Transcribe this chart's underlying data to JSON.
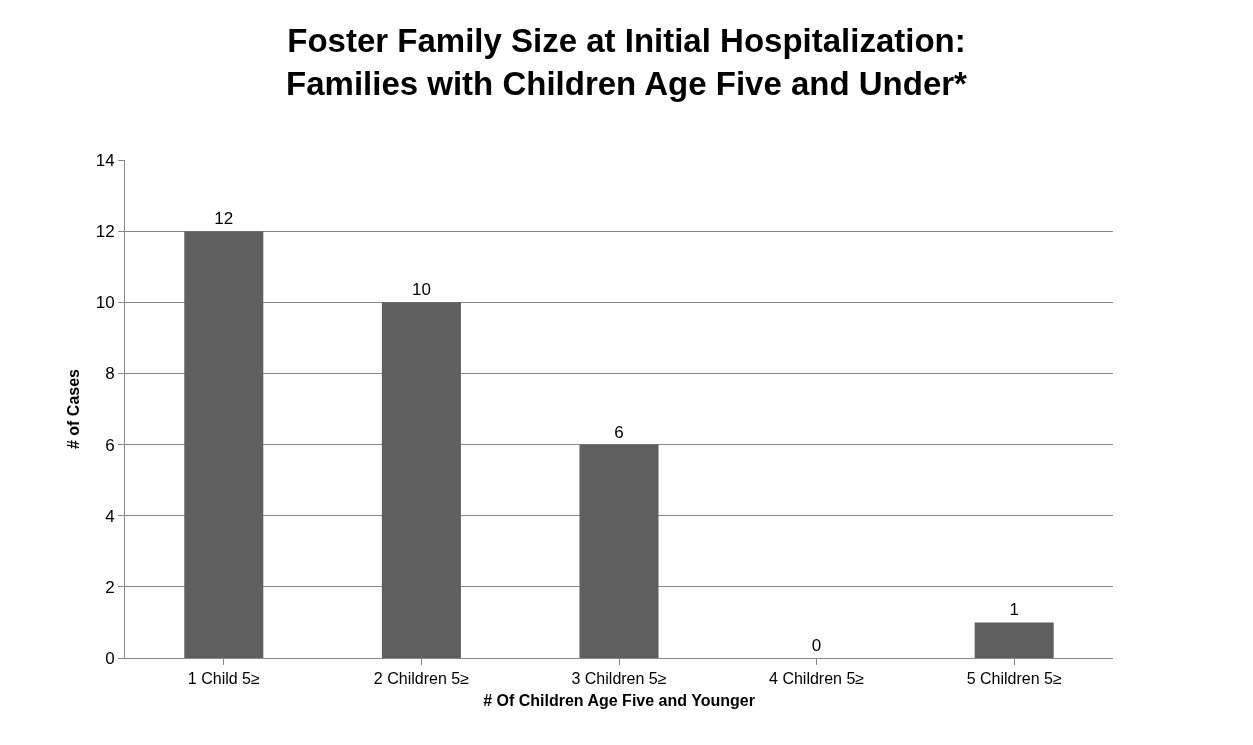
{
  "chart_data": {
    "type": "bar",
    "title": "Foster Family Size at Initial Hospitalization:\nFamilies with Children Age Five and Under*",
    "xlabel": "# Of Children Age Five and Younger",
    "ylabel": "# of Cases",
    "categories": [
      "1 Child 5≥",
      "2 Children 5≥",
      "3 Children 5≥",
      "4 Children 5≥",
      "5 Children 5≥"
    ],
    "values": [
      12,
      10,
      6,
      0,
      1
    ],
    "color": "#5f5f5f",
    "ylim": [
      0,
      14
    ],
    "yticks": [
      0,
      2,
      4,
      6,
      8,
      10,
      12,
      14
    ],
    "grid": "y",
    "data_labels": true
  }
}
